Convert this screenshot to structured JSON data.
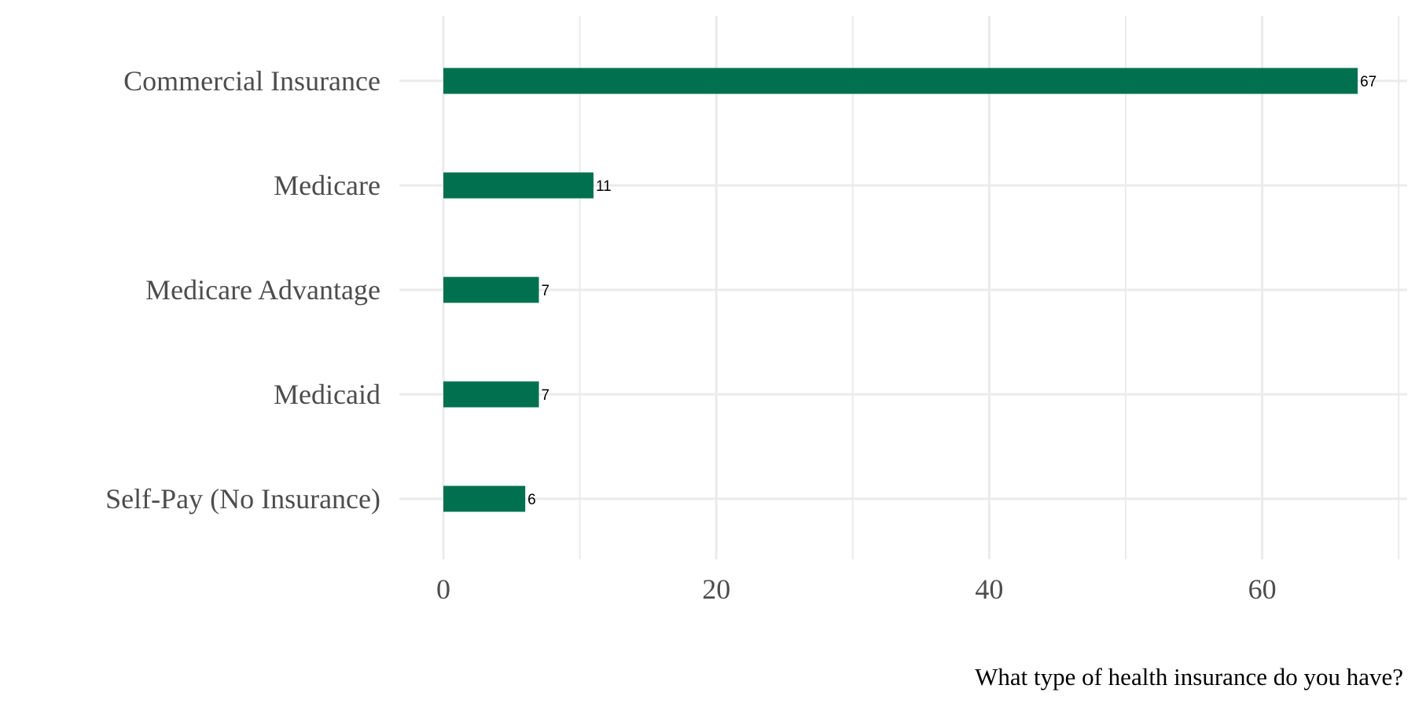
{
  "chart_data": {
    "type": "bar",
    "orientation": "horizontal",
    "categories": [
      "Commercial Insurance",
      "Medicare",
      "Medicare Advantage",
      "Medicaid",
      "Self-Pay (No Insurance)"
    ],
    "values": [
      67,
      11,
      7,
      7,
      6
    ],
    "data_labels": [
      "67",
      "11",
      "7",
      "7",
      "6"
    ],
    "title": "",
    "xlabel": "",
    "ylabel": "",
    "caption": "What type of health insurance do you have?",
    "xlim": [
      0,
      70
    ],
    "x_ticks": [
      0,
      20,
      40,
      60
    ],
    "x_tick_labels": [
      "0",
      "20",
      "40",
      "60"
    ],
    "x_minor_ticks": [
      10,
      30,
      50,
      70
    ],
    "grid": true,
    "legend": "none",
    "bar_color": "#00704f",
    "grid_color": "#ebebeb"
  }
}
